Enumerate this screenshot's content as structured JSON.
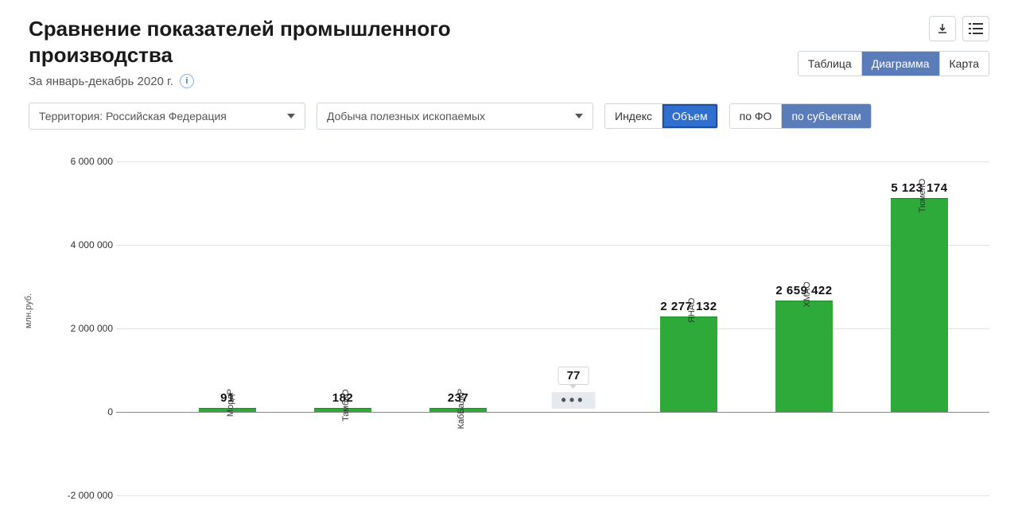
{
  "title": "Сравнение показателей промышленного производства",
  "subtitle": "За январь-декабрь 2020 г.",
  "view_tabs": {
    "table": "Таблица",
    "chart": "Диаграмма",
    "map": "Карта",
    "active": "chart"
  },
  "selects": {
    "territory": "Территория: Российская  Федерация",
    "indicator": "Добыча полезных ископаемых"
  },
  "metric_toggle": {
    "index": "Индекс",
    "volume": "Объем",
    "active": "volume"
  },
  "grouping_toggle": {
    "by_fo": "по ФО",
    "by_subj": "по субъектам",
    "active": "by_subj"
  },
  "chart": {
    "type": "bar",
    "ylabel": "млн.руб.",
    "ylim": [
      -2000000,
      6000000
    ],
    "ytick_step": 2000000,
    "yticks": [
      -2000000,
      0,
      2000000,
      4000000,
      6000000
    ],
    "ytick_labels": [
      "-2 000 000",
      "0",
      "2 000 000",
      "4 000 000",
      "6 000 000"
    ],
    "bar_color": "#2eaa3a",
    "grid_color": "#e0e4e9",
    "baseline_color": "#888888",
    "background_color": "#ffffff",
    "value_font_weight": 700,
    "bars": [
      {
        "category": "МордР",
        "value": 91,
        "value_label": "91"
      },
      {
        "category": "ТамбвО",
        "value": 182,
        "value_label": "182"
      },
      {
        "category": "КабБалкР",
        "value": 237,
        "value_label": "237"
      }
    ],
    "more_count": "77",
    "bars_right": [
      {
        "category": "ЯНАО",
        "value": 2277132,
        "value_label": "2 277 132"
      },
      {
        "category": "ХМАО",
        "value": 2659422,
        "value_label": "2 659 422"
      },
      {
        "category": "ТюменО",
        "value": 5123174,
        "value_label": "5 123 174"
      }
    ]
  }
}
